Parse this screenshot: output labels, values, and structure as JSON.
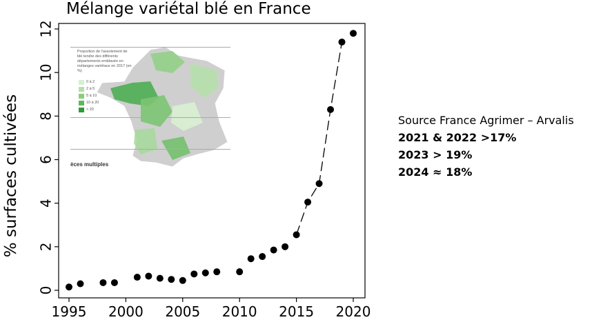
{
  "chart_data": {
    "type": "scatter",
    "title": "Mélange variétal blé en France",
    "xlabel": "",
    "ylabel": "% surfaces cultivées",
    "xlim": [
      1995,
      2020
    ],
    "ylim": [
      0,
      12
    ],
    "xticks": [
      1995,
      2000,
      2005,
      2010,
      2015,
      2020
    ],
    "yticks": [
      0,
      2,
      4,
      6,
      8,
      10,
      12
    ],
    "grid": false,
    "points": [
      {
        "x": 1995,
        "y": 0.15
      },
      {
        "x": 1996,
        "y": 0.3
      },
      {
        "x": 1998,
        "y": 0.35
      },
      {
        "x": 1999,
        "y": 0.35
      },
      {
        "x": 2001,
        "y": 0.6
      },
      {
        "x": 2002,
        "y": 0.65
      },
      {
        "x": 2003,
        "y": 0.55
      },
      {
        "x": 2004,
        "y": 0.5
      },
      {
        "x": 2005,
        "y": 0.45
      },
      {
        "x": 2006,
        "y": 0.75
      },
      {
        "x": 2007,
        "y": 0.8
      },
      {
        "x": 2008,
        "y": 0.85
      },
      {
        "x": 2010,
        "y": 0.85
      },
      {
        "x": 2011,
        "y": 1.45
      },
      {
        "x": 2012,
        "y": 1.55
      },
      {
        "x": 2013,
        "y": 1.85
      },
      {
        "x": 2014,
        "y": 2.0
      },
      {
        "x": 2015,
        "y": 2.55
      },
      {
        "x": 2016,
        "y": 4.05
      },
      {
        "x": 2017,
        "y": 4.9
      },
      {
        "x": 2018,
        "y": 8.3
      },
      {
        "x": 2019,
        "y": 11.4
      },
      {
        "x": 2020,
        "y": 11.8
      }
    ],
    "trend_line": {
      "x": [
        2015,
        2016,
        2017,
        2018,
        2019
      ],
      "y": [
        2.55,
        4.05,
        4.9,
        8.3,
        11.4
      ]
    }
  },
  "inset": {
    "legend_title": "Proportion de l'assolement de blé tendre des différents départements emblavée en mélanges variétaux en 2017 (en %)",
    "legend_items": [
      {
        "label": "0 à 2",
        "color": "#d8eed2"
      },
      {
        "label": "2 à 5",
        "color": "#b6dfab"
      },
      {
        "label": "5 à 10",
        "color": "#8ccc7f"
      },
      {
        "label": "10 à 20",
        "color": "#5fb65a"
      },
      {
        "label": "> 20",
        "color": "#2e9a3a"
      }
    ],
    "footer": "èces multiples"
  },
  "notes": {
    "source": "Source France Agrimer – Arvalis",
    "line1": "2021 & 2022 >17%",
    "line2": "2023 > 19%",
    "line3": "2024 ≈ 18%"
  }
}
